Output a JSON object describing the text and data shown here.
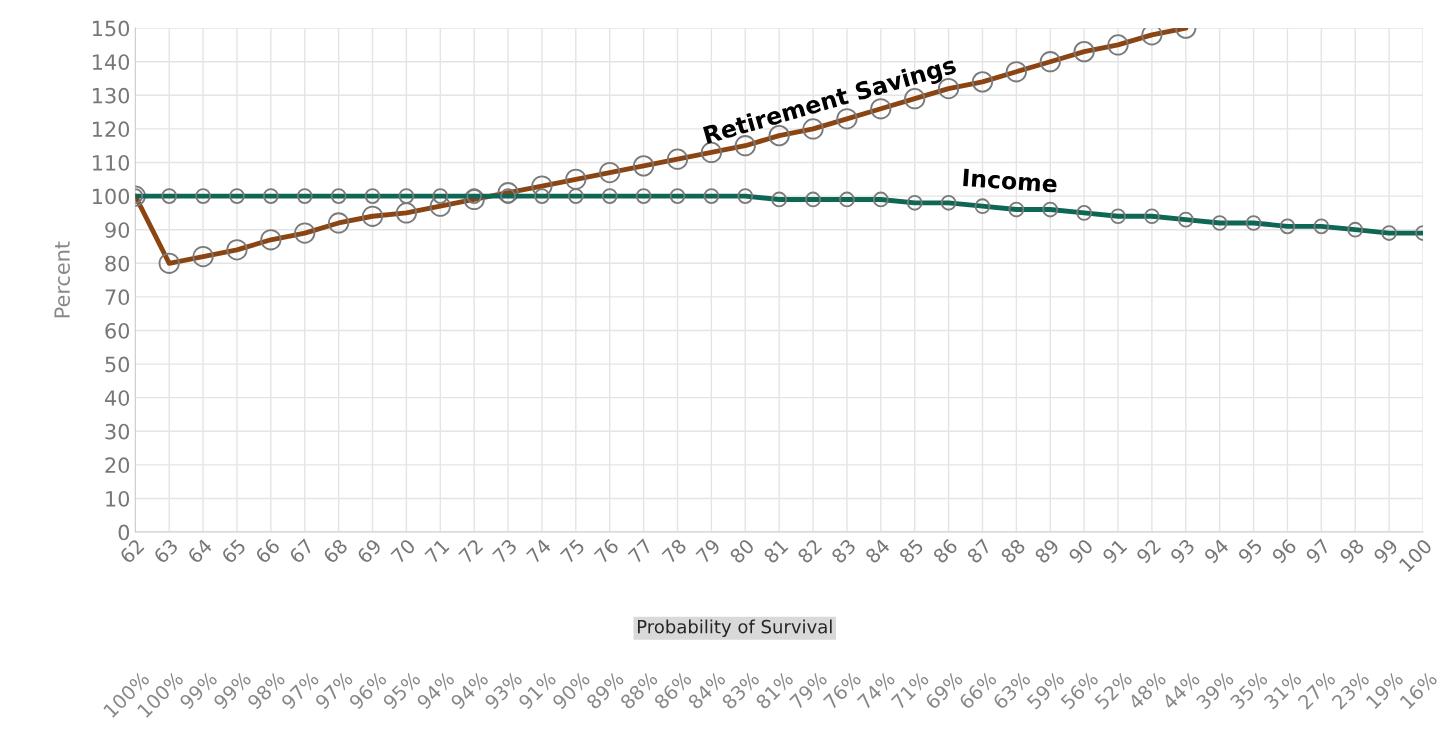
{
  "chart_data": {
    "type": "line",
    "categories": [
      "62",
      "63",
      "64",
      "65",
      "66",
      "67",
      "68",
      "69",
      "70",
      "71",
      "72",
      "73",
      "74",
      "75",
      "76",
      "77",
      "78",
      "79",
      "80",
      "81",
      "82",
      "83",
      "84",
      "85",
      "86",
      "87",
      "88",
      "89",
      "90",
      "91",
      "92",
      "93",
      "94",
      "95",
      "96",
      "97",
      "98",
      "99",
      "100"
    ],
    "series": [
      {
        "name": "Retirement Savings",
        "color": "#8b4513",
        "values": [
          100,
          80,
          82,
          84,
          87,
          89,
          92,
          94,
          95,
          97,
          99,
          101,
          103,
          105,
          107,
          109,
          111,
          113,
          115,
          118,
          120,
          123,
          126,
          129,
          132,
          134,
          137,
          140,
          143,
          145,
          148,
          150,
          null,
          null,
          null,
          null,
          null,
          null,
          null
        ]
      },
      {
        "name": "Income",
        "color": "#0e6655",
        "values": [
          100,
          100,
          100,
          100,
          100,
          100,
          100,
          100,
          100,
          100,
          100,
          100,
          100,
          100,
          100,
          100,
          100,
          100,
          100,
          99,
          99,
          99,
          99,
          98,
          98,
          97,
          96,
          96,
          95,
          94,
          94,
          93,
          92,
          92,
          91,
          91,
          90,
          89,
          89
        ]
      }
    ],
    "ylabel": "Percent",
    "ylim": [
      0,
      150
    ],
    "yticks": [
      0,
      10,
      20,
      30,
      40,
      50,
      60,
      70,
      80,
      90,
      100,
      110,
      120,
      130,
      140,
      150
    ],
    "annotations": [
      "Probability of Survival",
      "100%",
      "100%",
      "99%",
      "99%",
      "98%",
      "97%",
      "97%",
      "96%",
      "95%",
      "94%",
      "94%",
      "93%",
      "91%",
      "90%",
      "89%",
      "88%",
      "86%",
      "84%",
      "83%",
      "81%",
      "79%",
      "76%",
      "74%",
      "71%",
      "69%",
      "66%",
      "63%",
      "59%",
      "56%",
      "52%",
      "48%",
      "44%",
      "39%",
      "35%",
      "31%",
      "27%",
      "23%",
      "19%",
      "16%"
    ],
    "grid": true,
    "marker": "circle",
    "line_style": "solid"
  }
}
